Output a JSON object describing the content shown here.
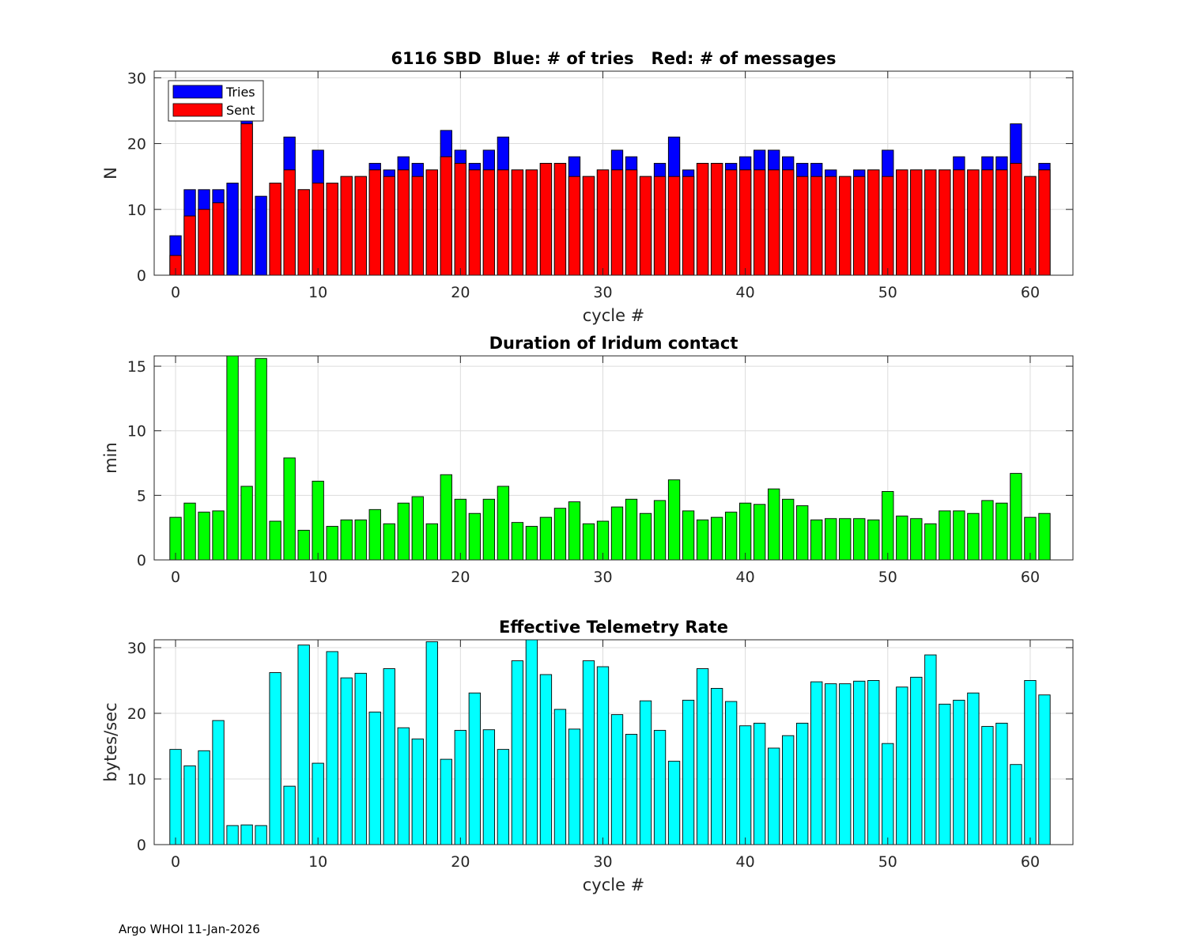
{
  "footer": "Argo WHOI 11-Jan-2026",
  "colors": {
    "tries": "#0000ff",
    "sent": "#ff0000",
    "duration": "#00ff00",
    "rate": "#00ffff",
    "grid": "#dcdcdc"
  },
  "chart_data": [
    {
      "type": "bar",
      "stacked": "overlay",
      "title": "6116 SBD  Blue: # of tries   Red: # of messages",
      "xlabel": "cycle #",
      "ylabel": "N",
      "xlim": [
        -1.5,
        63
      ],
      "ylim": [
        0,
        31
      ],
      "xticks": [
        0,
        10,
        20,
        30,
        40,
        50,
        60
      ],
      "yticks": [
        0,
        10,
        20,
        30
      ],
      "grid": true,
      "legend": {
        "placement": "top-left",
        "entries": [
          "Tries",
          "Sent"
        ]
      },
      "x": [
        0,
        1,
        2,
        3,
        4,
        5,
        6,
        7,
        8,
        9,
        10,
        11,
        12,
        13,
        14,
        15,
        16,
        17,
        18,
        19,
        20,
        21,
        22,
        23,
        24,
        25,
        26,
        27,
        28,
        29,
        30,
        31,
        32,
        33,
        34,
        35,
        36,
        37,
        38,
        39,
        40,
        41,
        42,
        43,
        44,
        45,
        46,
        47,
        48,
        49,
        50,
        51,
        52,
        53,
        54,
        55,
        56,
        57,
        58,
        59,
        60,
        61
      ],
      "series": [
        {
          "name": "Tries",
          "color": "#0000ff",
          "values": [
            6,
            13,
            13,
            13,
            14,
            24,
            12,
            14,
            21,
            13,
            19,
            14,
            15,
            15,
            17,
            16,
            18,
            17,
            16,
            22,
            19,
            17,
            19,
            21,
            16,
            16,
            17,
            17,
            18,
            15,
            16,
            19,
            18,
            15,
            17,
            21,
            16,
            17,
            17,
            17,
            18,
            19,
            19,
            18,
            17,
            17,
            16,
            15,
            16,
            16,
            19,
            16,
            16,
            16,
            16,
            18,
            16,
            18,
            18,
            23,
            15,
            17
          ]
        },
        {
          "name": "Sent",
          "color": "#ff0000",
          "values": [
            3,
            9,
            10,
            11,
            0,
            23,
            0,
            14,
            16,
            13,
            14,
            14,
            15,
            15,
            16,
            15,
            16,
            15,
            16,
            18,
            17,
            16,
            16,
            16,
            16,
            16,
            17,
            17,
            15,
            15,
            16,
            16,
            16,
            15,
            15,
            15,
            15,
            17,
            17,
            16,
            16,
            16,
            16,
            16,
            15,
            15,
            15,
            15,
            15,
            16,
            15,
            16,
            16,
            16,
            16,
            16,
            16,
            16,
            16,
            17,
            15,
            16
          ]
        }
      ]
    },
    {
      "type": "bar",
      "title": "Duration of Iridum contact",
      "xlabel": "",
      "ylabel": "min",
      "xlim": [
        -1.5,
        63
      ],
      "ylim": [
        0,
        15.8
      ],
      "xticks": [
        0,
        10,
        20,
        30,
        40,
        50,
        60
      ],
      "yticks": [
        0,
        5,
        10,
        15
      ],
      "grid": true,
      "x": [
        -1,
        0,
        1,
        2,
        3,
        4,
        5,
        6,
        7,
        8,
        9,
        10,
        11,
        12,
        13,
        14,
        15,
        16,
        17,
        18,
        19,
        20,
        21,
        22,
        23,
        24,
        25,
        26,
        27,
        28,
        29,
        30,
        31,
        32,
        33,
        34,
        35,
        36,
        37,
        38,
        39,
        40,
        41,
        42,
        43,
        44,
        45,
        46,
        47,
        48,
        49,
        50,
        51,
        52,
        53,
        54,
        55,
        56,
        57,
        58,
        59,
        60,
        61
      ],
      "series": [
        {
          "name": "Duration",
          "color": "#00ff00",
          "values": [
            0,
            3.3,
            4.4,
            3.7,
            3.8,
            16,
            5.7,
            15.6,
            3.0,
            7.9,
            2.3,
            6.1,
            2.6,
            3.1,
            3.1,
            3.9,
            2.8,
            4.4,
            4.9,
            2.8,
            6.6,
            4.7,
            3.6,
            4.7,
            5.7,
            2.9,
            2.6,
            3.3,
            4.0,
            4.5,
            2.8,
            3.0,
            4.1,
            4.7,
            3.6,
            4.6,
            6.2,
            3.8,
            3.1,
            3.3,
            3.7,
            4.4,
            4.3,
            5.5,
            4.7,
            4.2,
            3.1,
            3.2,
            3.2,
            3.2,
            3.1,
            5.3,
            3.4,
            3.2,
            2.8,
            3.8,
            3.8,
            3.6,
            4.6,
            4.4,
            6.7,
            3.3,
            3.6
          ]
        }
      ]
    },
    {
      "type": "bar",
      "title": "Effective Telemetry Rate",
      "xlabel": "cycle #",
      "ylabel": "bytes/sec",
      "xlim": [
        -1.5,
        63
      ],
      "ylim": [
        0,
        31.2
      ],
      "xticks": [
        0,
        10,
        20,
        30,
        40,
        50,
        60
      ],
      "yticks": [
        0,
        10,
        20,
        30
      ],
      "grid": true,
      "x": [
        0,
        1,
        2,
        3,
        4,
        5,
        6,
        7,
        8,
        9,
        10,
        11,
        12,
        13,
        14,
        15,
        16,
        17,
        18,
        19,
        20,
        21,
        22,
        23,
        24,
        25,
        26,
        27,
        28,
        29,
        30,
        31,
        32,
        33,
        34,
        35,
        36,
        37,
        38,
        39,
        40,
        41,
        42,
        43,
        44,
        45,
        46,
        47,
        48,
        49,
        50,
        51,
        52,
        53,
        54,
        55,
        56,
        57,
        58,
        59,
        60,
        61
      ],
      "series": [
        {
          "name": "Rate",
          "color": "#00ffff",
          "values": [
            14.5,
            12.0,
            14.3,
            18.9,
            2.9,
            3.0,
            2.9,
            26.2,
            8.9,
            30.4,
            12.4,
            29.4,
            25.4,
            26.1,
            20.2,
            26.8,
            17.8,
            16.1,
            30.9,
            13.0,
            17.4,
            23.1,
            17.5,
            14.5,
            28.0,
            31.2,
            25.9,
            20.6,
            17.6,
            28.0,
            27.1,
            19.8,
            16.8,
            21.9,
            17.4,
            12.7,
            22.0,
            26.8,
            23.8,
            21.8,
            18.1,
            18.5,
            14.7,
            16.6,
            18.5,
            24.8,
            24.5,
            24.5,
            24.9,
            25.0,
            15.4,
            24.0,
            25.5,
            28.9,
            21.4,
            22.0,
            23.1,
            18.0,
            18.5,
            12.2,
            25.0,
            22.8
          ]
        }
      ]
    }
  ]
}
